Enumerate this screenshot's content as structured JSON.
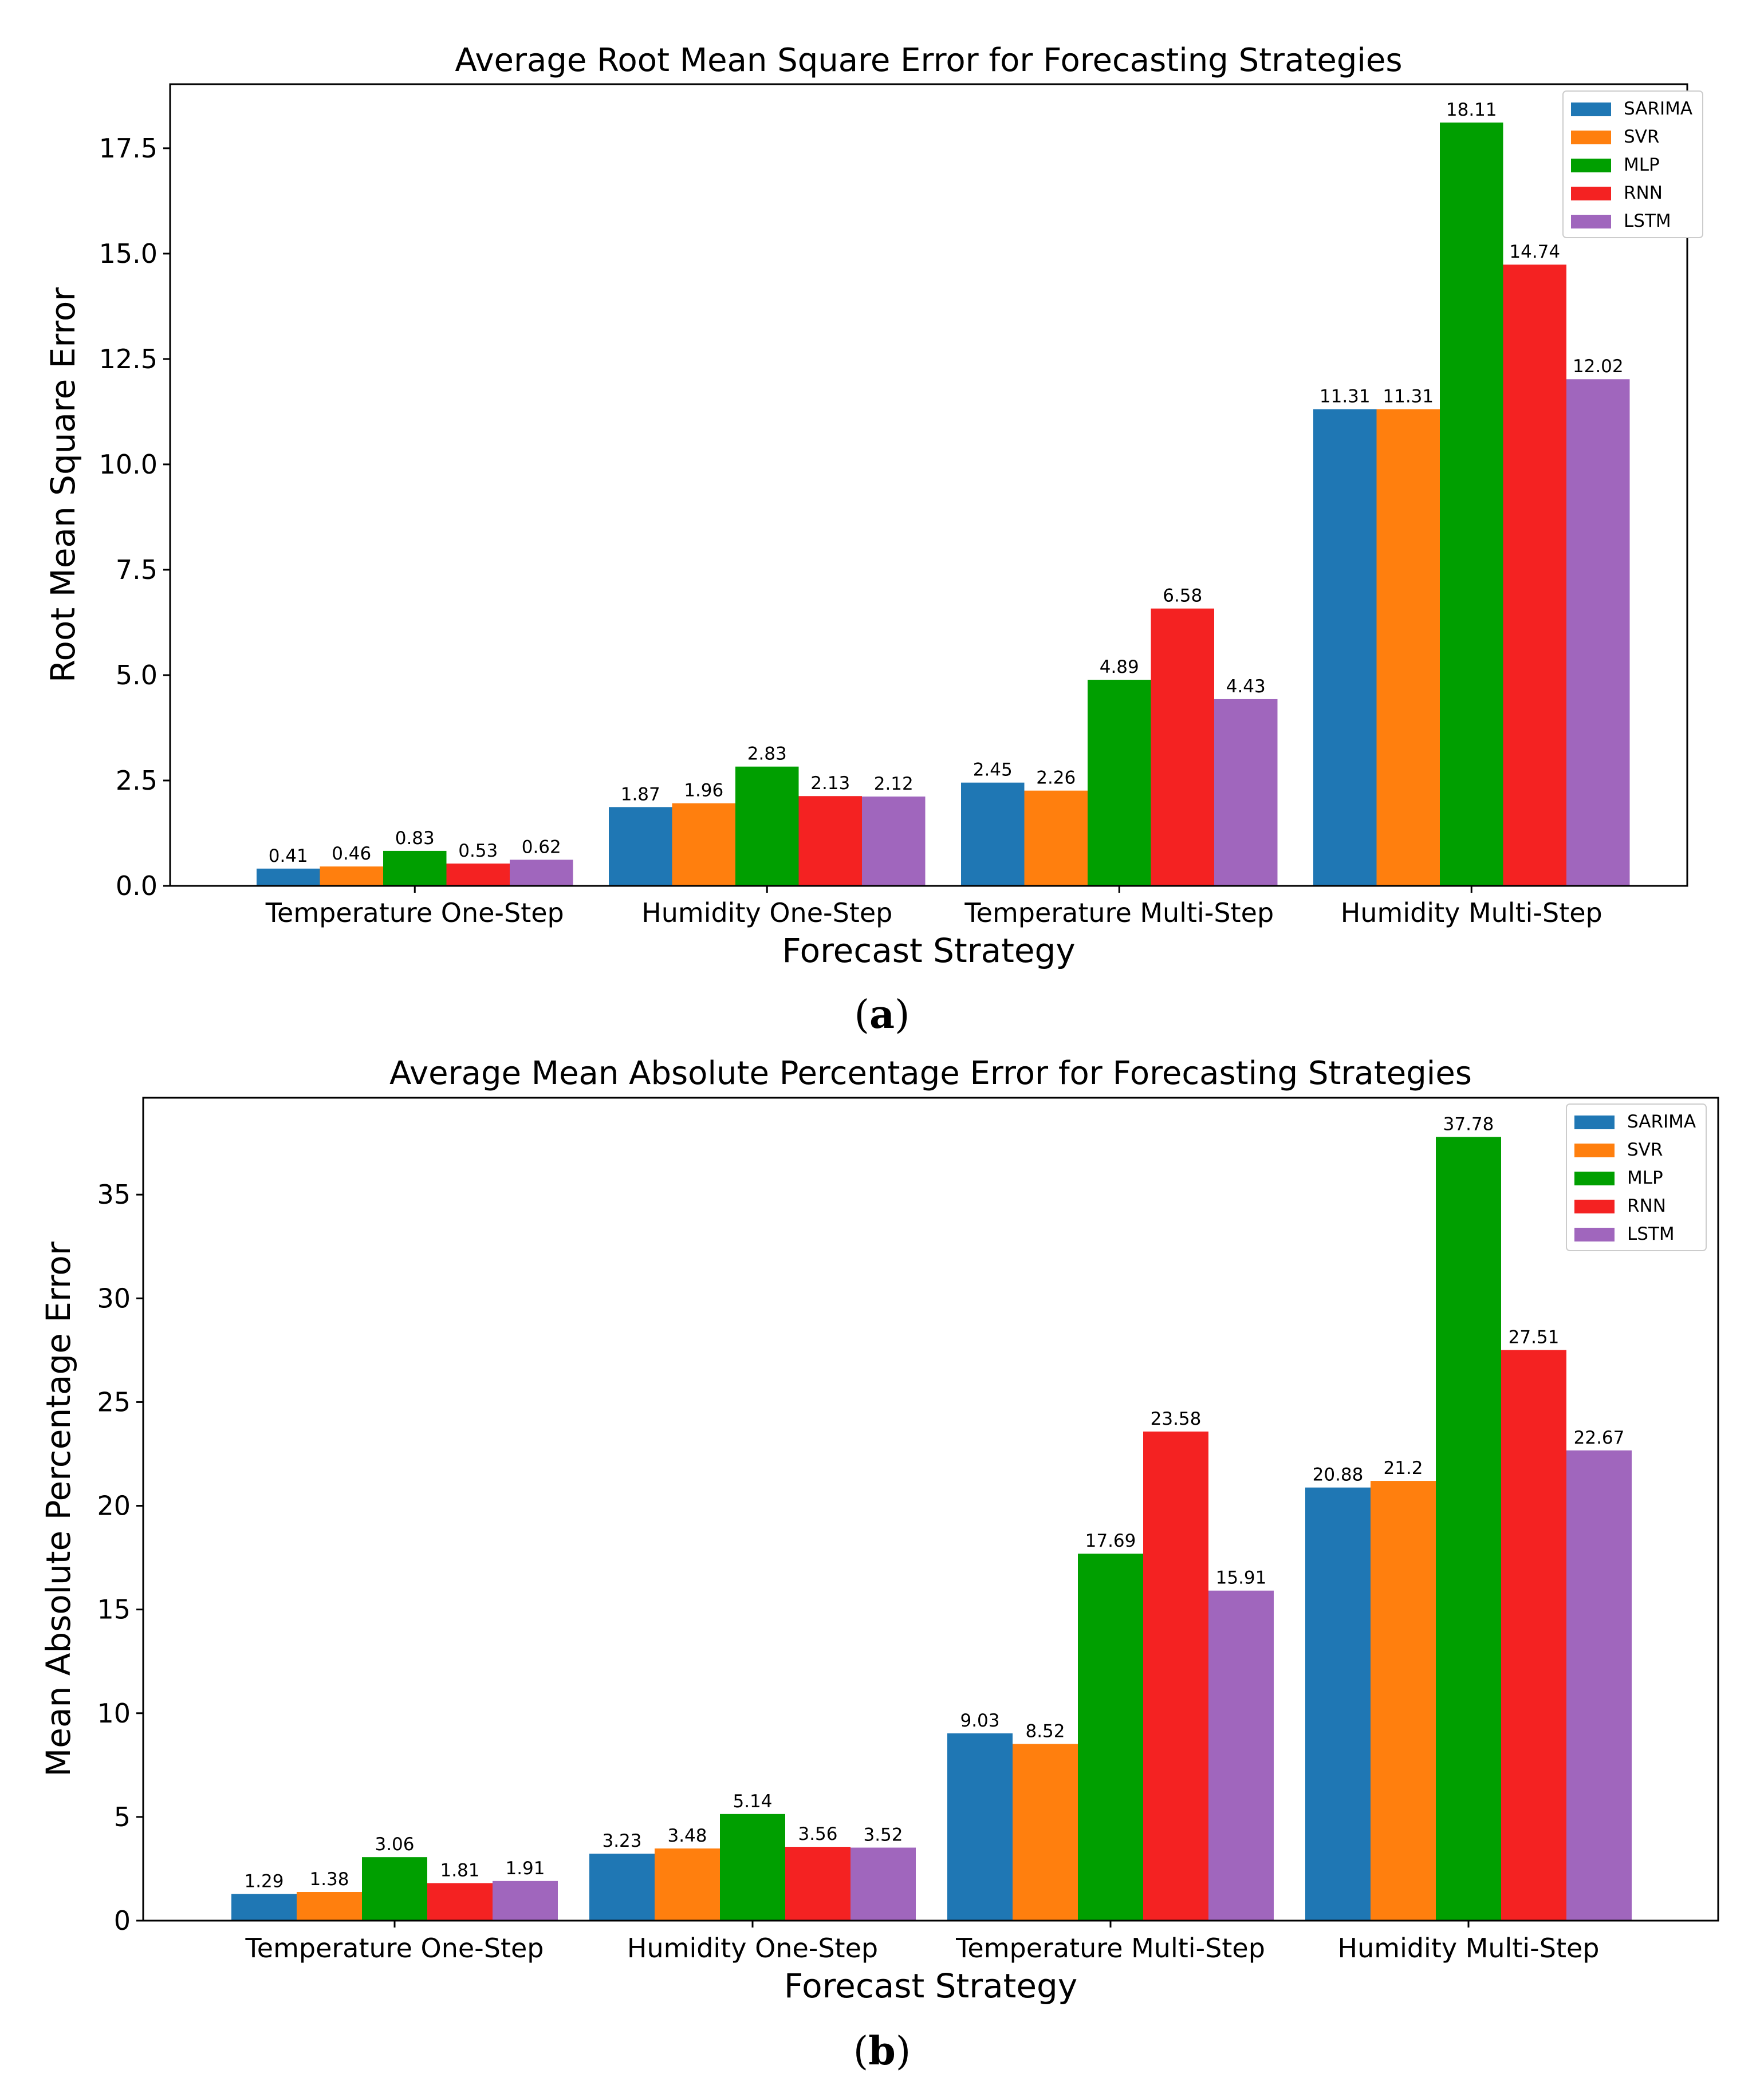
{
  "colors": {
    "SARIMA": "#1f77b4",
    "SVR": "#ff7f0e",
    "MLP": "#009f00",
    "RNN": "#f42222",
    "LSTM": "#a066bd"
  },
  "chart_data": [
    {
      "type": "bar",
      "panel_label": "a",
      "title": "Average Root Mean Square Error for Forecasting Strategies",
      "xlabel": "Forecast Strategy",
      "ylabel": "Root Mean Square Error",
      "ylim": [
        0,
        19.02
      ],
      "yticks": [
        0.0,
        2.5,
        5.0,
        7.5,
        10.0,
        12.5,
        15.0,
        17.5
      ],
      "ytick_labels": [
        "0.0",
        "2.5",
        "5.0",
        "7.5",
        "10.0",
        "12.5",
        "15.0",
        "17.5"
      ],
      "grid": false,
      "legend_position": "top-right",
      "categories": [
        "Temperature One-Step",
        "Humidity One-Step",
        "Temperature Multi-Step",
        "Humidity Multi-Step"
      ],
      "series": [
        {
          "name": "SARIMA",
          "values": [
            0.41,
            1.87,
            2.45,
            11.31
          ],
          "labels": [
            "0.41",
            "1.87",
            "2.45",
            "11.31"
          ]
        },
        {
          "name": "SVR",
          "values": [
            0.46,
            1.96,
            2.26,
            11.31
          ],
          "labels": [
            "0.46",
            "1.96",
            "2.26",
            "11.31"
          ]
        },
        {
          "name": "MLP",
          "values": [
            0.83,
            2.83,
            4.89,
            18.11
          ],
          "labels": [
            "0.83",
            "2.83",
            "4.89",
            "18.11"
          ]
        },
        {
          "name": "RNN",
          "values": [
            0.53,
            2.13,
            6.58,
            14.74
          ],
          "labels": [
            "0.53",
            "2.13",
            "6.58",
            "14.74"
          ]
        },
        {
          "name": "LSTM",
          "values": [
            0.62,
            2.12,
            4.43,
            12.02
          ],
          "labels": [
            "0.62",
            "2.12",
            "4.43",
            "12.02"
          ]
        }
      ]
    },
    {
      "type": "bar",
      "panel_label": "b",
      "title": "Average Mean Absolute Percentage Error for Forecasting Strategies",
      "xlabel": "Forecast Strategy",
      "ylabel": "Mean Absolute Percentage Error",
      "ylim": [
        0,
        39.67
      ],
      "yticks": [
        0,
        5,
        10,
        15,
        20,
        25,
        30,
        35
      ],
      "ytick_labels": [
        "0",
        "5",
        "10",
        "15",
        "20",
        "25",
        "30",
        "35"
      ],
      "grid": false,
      "legend_position": "top-right",
      "categories": [
        "Temperature One-Step",
        "Humidity One-Step",
        "Temperature Multi-Step",
        "Humidity Multi-Step"
      ],
      "series": [
        {
          "name": "SARIMA",
          "values": [
            1.29,
            3.23,
            9.03,
            20.88
          ],
          "labels": [
            "1.29",
            "3.23",
            "9.03",
            "20.88"
          ]
        },
        {
          "name": "SVR",
          "values": [
            1.38,
            3.48,
            8.52,
            21.2
          ],
          "labels": [
            "1.38",
            "3.48",
            "8.52",
            "21.2"
          ]
        },
        {
          "name": "MLP",
          "values": [
            3.06,
            5.14,
            17.69,
            37.78
          ],
          "labels": [
            "3.06",
            "5.14",
            "17.69",
            "37.78"
          ]
        },
        {
          "name": "RNN",
          "values": [
            1.81,
            3.56,
            23.58,
            27.51
          ],
          "labels": [
            "1.81",
            "3.56",
            "23.58",
            "27.51"
          ]
        },
        {
          "name": "LSTM",
          "values": [
            1.91,
            3.52,
            15.91,
            22.67
          ],
          "labels": [
            "1.91",
            "3.52",
            "15.91",
            "22.67"
          ]
        }
      ]
    }
  ]
}
